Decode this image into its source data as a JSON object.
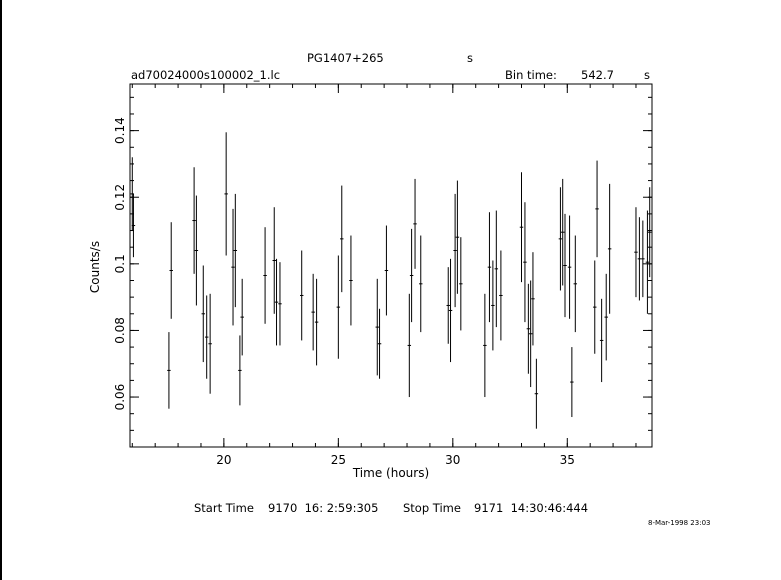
{
  "header": {
    "target": "PG1407+265",
    "band": "s",
    "filename": "ad70024000s100002_1.lc",
    "bin_label": "Bin time:",
    "bin_value": "542.7",
    "bin_unit": "s"
  },
  "footer": {
    "start_label": "Start Time",
    "start_value": "9170  16: 2:59:305",
    "stop_label": "Stop Time",
    "stop_value": "9171  14:30:46:444",
    "datestamp": "8-Mar-1998 23:03"
  },
  "chart_data": {
    "type": "scatter",
    "title": "PG1407+265",
    "xlabel": "Time (hours)",
    "ylabel": "Counts/s",
    "xlim": [
      15.9,
      38.7
    ],
    "ylim": [
      0.045,
      0.154
    ],
    "xticks": [
      20,
      25,
      30,
      35
    ],
    "xtick_labels": [
      "20",
      "25",
      "30",
      "35"
    ],
    "yticks": [
      0.06,
      0.08,
      0.1,
      0.12,
      0.14
    ],
    "ytick_labels": [
      "0.06",
      "0.08",
      "0.1",
      "0.12",
      "0.14"
    ],
    "x_minor_step": 1,
    "y_minor_step": 0.005,
    "grid": false,
    "series": [
      {
        "x": [
          16.0,
          16.05,
          17.6,
          17.7,
          18.7,
          18.8,
          19.1,
          19.25,
          19.4,
          20.1,
          20.4,
          20.5,
          20.7,
          20.8,
          21.8,
          22.2,
          22.3,
          22.45,
          23.4,
          23.9,
          24.05,
          25.0,
          25.15,
          25.55,
          26.7,
          26.8,
          27.1,
          28.1,
          28.2,
          28.35,
          28.6,
          29.8,
          29.9,
          30.1,
          30.2,
          30.35,
          31.4,
          31.6,
          31.75,
          31.9,
          32.1,
          33.0,
          33.15,
          33.3,
          33.4,
          33.5,
          33.65,
          34.7,
          34.8,
          34.9,
          35.1,
          35.2,
          35.35,
          36.2,
          36.3,
          36.5,
          36.7,
          36.85,
          38.0,
          38.15,
          38.3,
          38.5,
          38.6
        ],
        "y": [
          0.121,
          0.1115,
          0.068,
          0.098,
          0.113,
          0.104,
          0.085,
          0.078,
          0.076,
          0.121,
          0.099,
          0.104,
          0.068,
          0.084,
          0.0965,
          0.101,
          0.0885,
          0.088,
          0.0905,
          0.0855,
          0.0825,
          0.087,
          0.1075,
          0.095,
          0.081,
          0.076,
          0.098,
          0.0755,
          0.0965,
          0.112,
          0.094,
          0.0875,
          0.086,
          0.104,
          0.108,
          0.094,
          0.0755,
          0.099,
          0.0875,
          0.0985,
          0.0905,
          0.111,
          0.1005,
          0.0805,
          0.079,
          0.0895,
          0.061,
          0.1075,
          0.1095,
          0.0995,
          0.099,
          0.0645,
          0.094,
          0.087,
          0.1165,
          0.077,
          0.084,
          0.1045,
          0.1035,
          0.1015,
          0.1015,
          0.1005,
          0.1095
        ],
        "yerr": [
          0.011,
          0.0095,
          0.0115,
          0.0145,
          0.016,
          0.0165,
          0.0145,
          0.0125,
          0.015,
          0.0185,
          0.0175,
          0.017,
          0.0105,
          0.0115,
          0.0145,
          0.016,
          0.013,
          0.0125,
          0.0135,
          0.0115,
          0.013,
          0.0155,
          0.016,
          0.0135,
          0.0145,
          0.0105,
          0.0135,
          0.0155,
          0.014,
          0.0135,
          0.0145,
          0.0115,
          0.0155,
          0.017,
          0.017,
          0.014,
          0.0155,
          0.0165,
          0.0135,
          0.0175,
          0.0135,
          0.0165,
          0.018,
          0.0135,
          0.016,
          0.014,
          0.0105,
          0.0155,
          0.016,
          0.0155,
          0.0155,
          0.0105,
          0.0145,
          0.014,
          0.0145,
          0.0125,
          0.013,
          0.0195,
          0.0135,
          0.0125,
          0.0115,
          0.0155,
          0.0135
        ],
        "xerr": 0.075
      }
    ]
  }
}
